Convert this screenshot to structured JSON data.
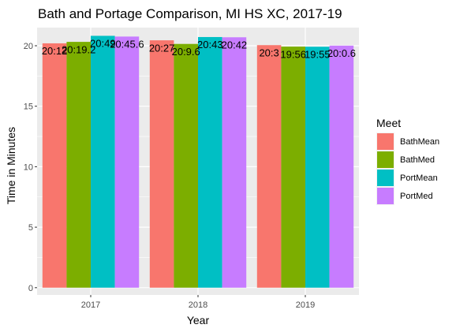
{
  "chart_data": {
    "type": "bar",
    "title": "Bath and Portage Comparison, MI HS XC, 2017-19",
    "xlabel": "Year",
    "ylabel": "Time in Minutes",
    "categories": [
      "2017",
      "2018",
      "2019"
    ],
    "ylim": [
      -0.6,
      21.5
    ],
    "yticks": [
      0,
      5,
      10,
      15,
      20
    ],
    "grid": true,
    "legend": {
      "title": "Meet",
      "position": "right"
    },
    "series": [
      {
        "name": "BathMean",
        "color": "#F8766D",
        "values": [
          20.2,
          20.45,
          20.05
        ],
        "labels": [
          "20:12",
          "20:27",
          "20:3"
        ]
      },
      {
        "name": "BathMed",
        "color": "#7CAE00",
        "values": [
          20.32,
          20.15,
          19.93
        ],
        "labels": [
          "20:19.2",
          "20:9.6",
          "19:56"
        ]
      },
      {
        "name": "PortMean",
        "color": "#00BFC4",
        "values": [
          20.82,
          20.72,
          19.92
        ],
        "labels": [
          "20:49",
          "20:43",
          "19:55"
        ]
      },
      {
        "name": "PortMed",
        "color": "#C77CFF",
        "values": [
          20.76,
          20.7,
          20.01
        ],
        "labels": [
          "20:45.6",
          "20:42",
          "20:0.6"
        ]
      }
    ],
    "data_label_rows": [
      [
        "20:12",
        "20:19.2",
        "20:49",
        "20:45.6"
      ],
      [
        "20:27",
        "20:9.6",
        "20:43",
        "20:42"
      ],
      [
        "20:3",
        "19:56",
        "19:55",
        "20:0.6"
      ]
    ]
  }
}
